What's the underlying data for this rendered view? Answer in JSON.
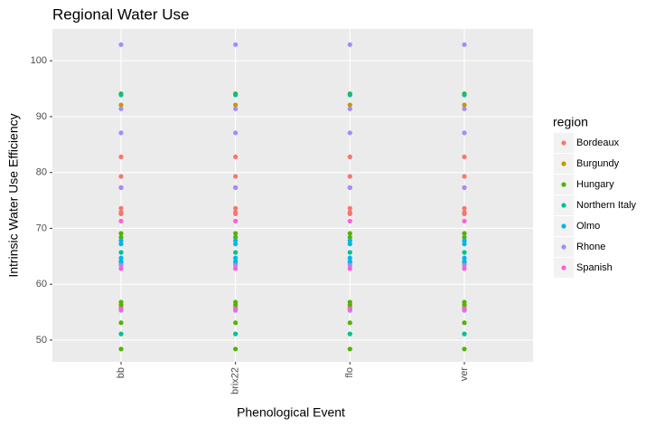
{
  "chart_data": {
    "type": "strip",
    "title": "Regional Water Use",
    "x_label": "Phenological Event",
    "y_label": "Intrinsic Water Use Efficiency",
    "categories": [
      "bb",
      "brix22",
      "flo",
      "ver"
    ],
    "ylim": [
      46.1,
      105.7
    ],
    "yticks": [
      50,
      60,
      70,
      80,
      90,
      100
    ],
    "grid": true,
    "legend_title": "region",
    "legend": "right",
    "series": [
      {
        "name": "Bordeaux",
        "color": "#F8766D",
        "values": [
          [
            82.8,
            79.3,
            77.3,
            73.6,
            72.9,
            72.6
          ],
          [
            82.8,
            79.3,
            77.3,
            73.6,
            72.9,
            72.6
          ],
          [
            82.8,
            79.3,
            77.3,
            73.6,
            72.9,
            72.6
          ],
          [
            82.8,
            79.3,
            77.3,
            73.6,
            72.9,
            72.6
          ]
        ]
      },
      {
        "name": "Burgundy",
        "color": "#C49A00",
        "values": [
          [
            92.1,
            63.8,
            55.8
          ],
          [
            92.1,
            63.8,
            55.8
          ],
          [
            92.1,
            63.8,
            55.8
          ],
          [
            92.1,
            63.8,
            55.8
          ]
        ]
      },
      {
        "name": "Hungary",
        "color": "#53B400",
        "values": [
          [
            94.1,
            69.1,
            68.4,
            56.8,
            56.3,
            53.1,
            48.4
          ],
          [
            94.1,
            69.1,
            68.4,
            56.8,
            56.3,
            53.1,
            48.4
          ],
          [
            94.1,
            69.1,
            68.4,
            56.8,
            56.3,
            53.1,
            48.4
          ],
          [
            94.1,
            69.1,
            68.4,
            56.8,
            56.3,
            53.1,
            48.4
          ]
        ]
      },
      {
        "name": "Northern Italy",
        "color": "#00C094",
        "values": [
          [
            93.9,
            65.7,
            51.1
          ],
          [
            93.9,
            65.7,
            51.1
          ],
          [
            93.9,
            65.7,
            51.1
          ],
          [
            93.9,
            65.7,
            51.1
          ]
        ]
      },
      {
        "name": "Olmo",
        "color": "#00B6EB",
        "values": [
          [
            67.8,
            67.2,
            64.7,
            64.1
          ],
          [
            67.8,
            67.2,
            64.7,
            64.1
          ],
          [
            67.8,
            67.2,
            64.7,
            64.1
          ],
          [
            67.8,
            67.2,
            64.7,
            64.1
          ]
        ]
      },
      {
        "name": "Rhone",
        "color": "#A58AFF",
        "values": [
          [
            102.9,
            91.4,
            87.1,
            77.3,
            63.4,
            55.3
          ],
          [
            102.9,
            91.4,
            87.1,
            77.3,
            63.4,
            55.3
          ],
          [
            102.9,
            91.4,
            87.1,
            77.3,
            63.4,
            55.3
          ],
          [
            102.9,
            91.4,
            87.1,
            77.3,
            63.4,
            55.3
          ]
        ]
      },
      {
        "name": "Spanish",
        "color": "#FB61D7",
        "values": [
          [
            71.3,
            62.8,
            55.6
          ],
          [
            71.3,
            62.8,
            55.6
          ],
          [
            71.3,
            62.8,
            55.6
          ],
          [
            71.3,
            62.8,
            55.6
          ]
        ]
      }
    ]
  }
}
